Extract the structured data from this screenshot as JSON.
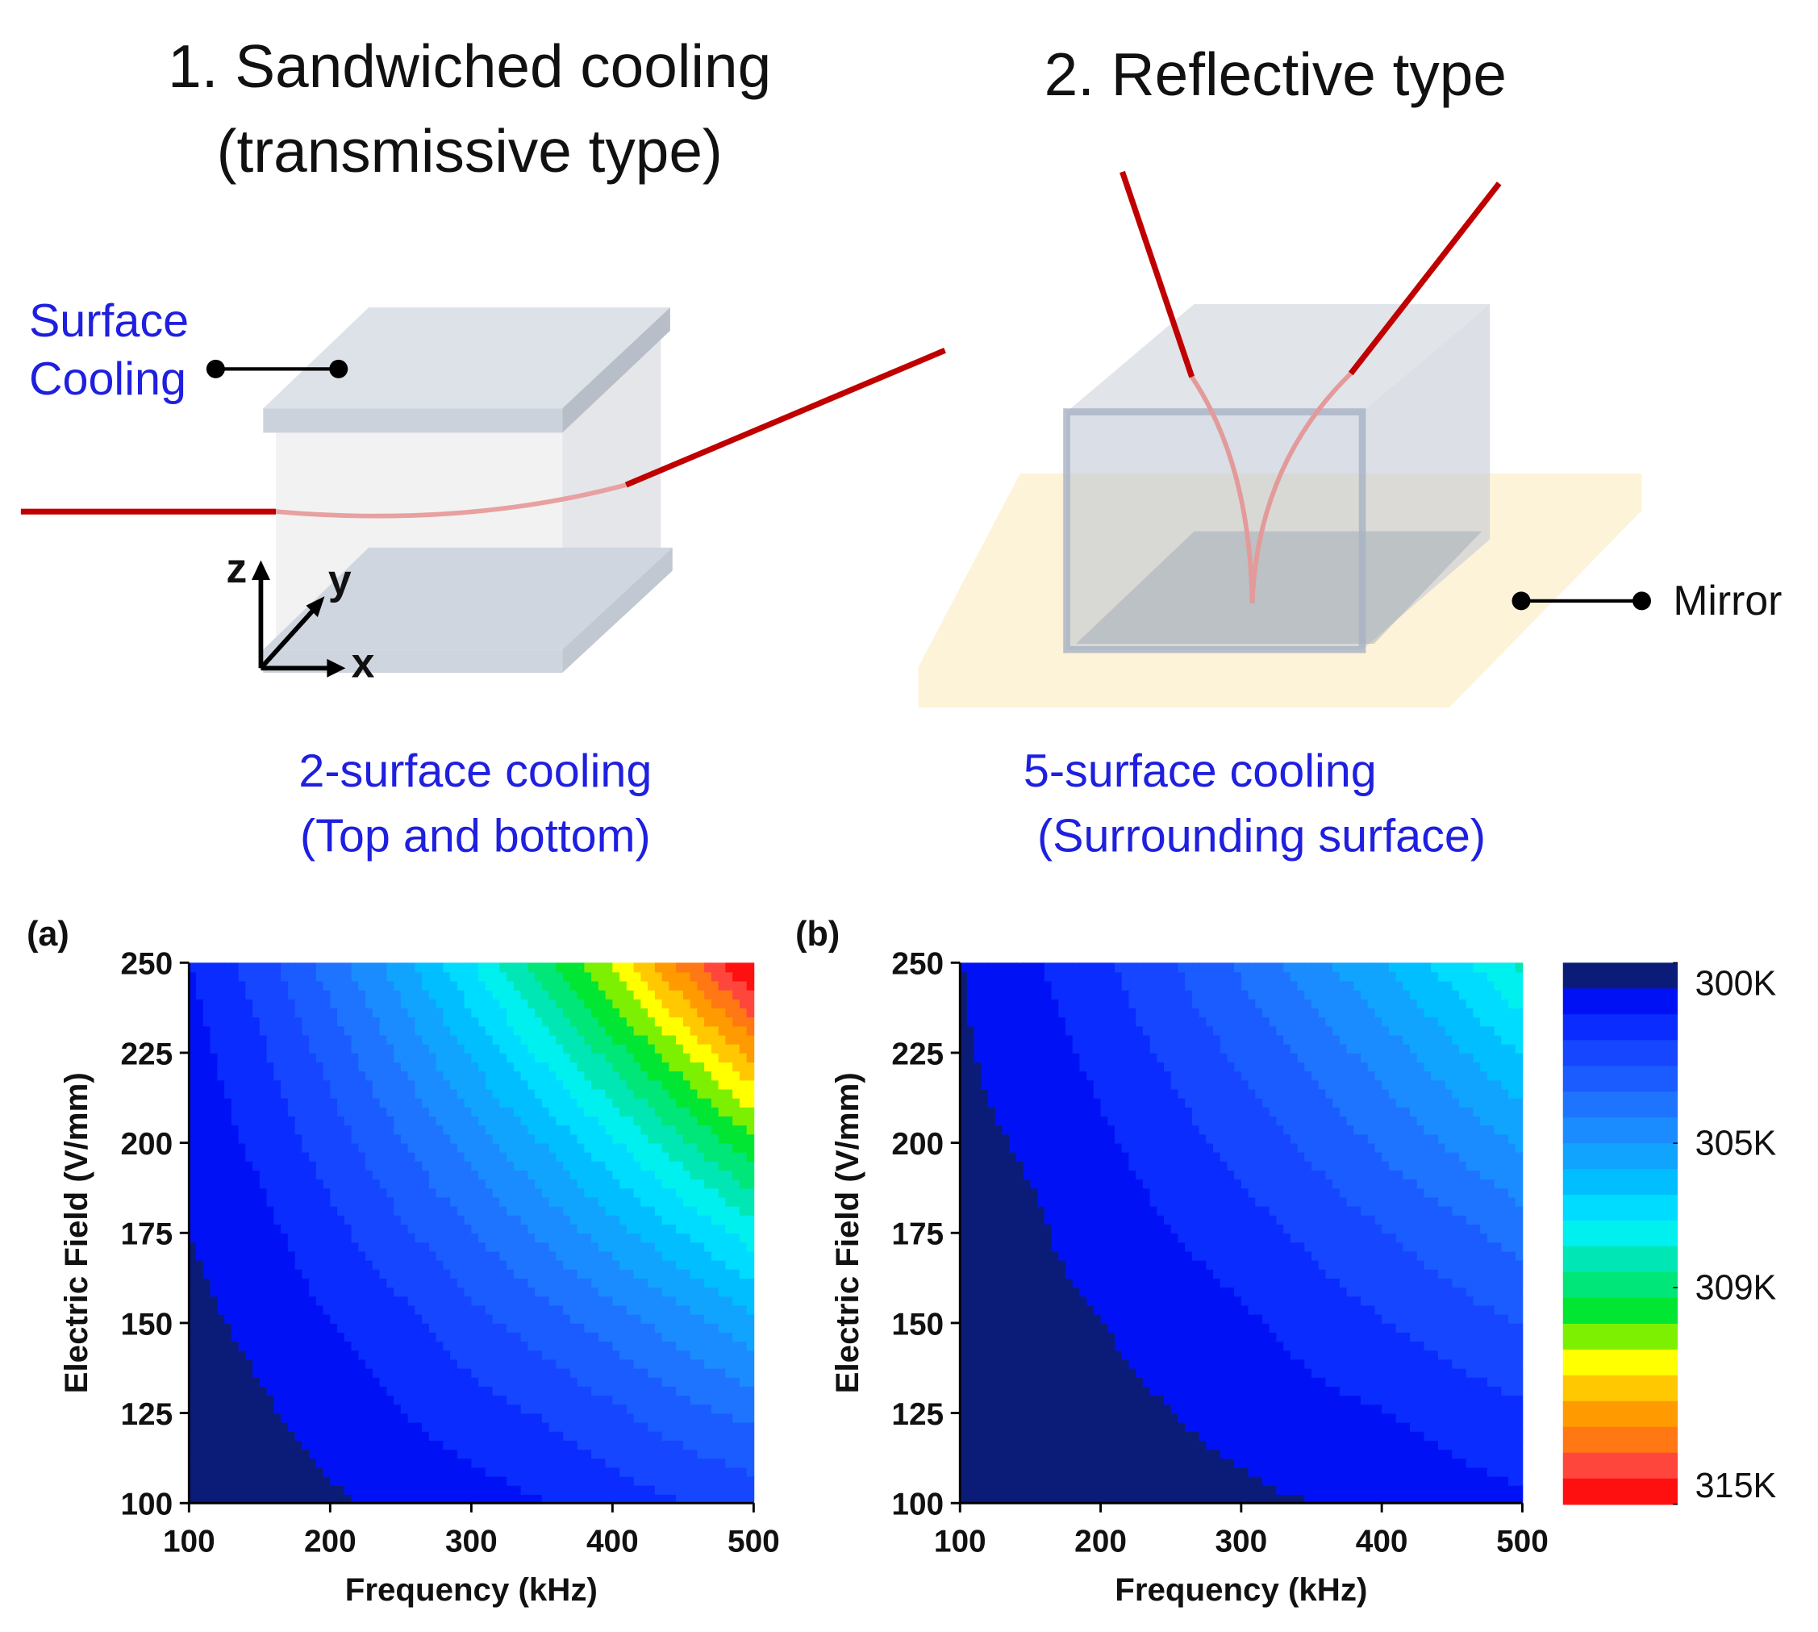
{
  "diagram": {
    "left_title": [
      "1. Sandwiched cooling",
      "(transmissive type)"
    ],
    "right_title": "2. Reflective type",
    "surface_cooling": [
      "Surface",
      "Cooling"
    ],
    "axes": {
      "z": "z",
      "y": "y",
      "x": "x"
    },
    "left_caption": [
      "2-surface cooling",
      "(Top and bottom)"
    ],
    "right_caption": [
      "5-surface cooling",
      "(Surrounding surface)"
    ],
    "mirror": "Mirror"
  },
  "colorbar": {
    "zlim": [
      300,
      315
    ],
    "colors": [
      "#0b1c78",
      "#0012f5",
      "#0a2cff",
      "#1646ff",
      "#1a5cff",
      "#1e74ff",
      "#1a8cff",
      "#10a4ff",
      "#00beff",
      "#00dcff",
      "#00f0f0",
      "#00e6b4",
      "#00e678",
      "#00e632",
      "#7cf000",
      "#ffff00",
      "#ffc800",
      "#ff9a00",
      "#ff7814",
      "#ff463c",
      "#ff1010"
    ],
    "ticks": [
      {
        "value": 300,
        "label": "300K"
      },
      {
        "value": 305,
        "label": "305K"
      },
      {
        "value": 309,
        "label": "309K"
      },
      {
        "value": 315,
        "label": "315K"
      }
    ]
  },
  "chart_data": [
    {
      "type": "contour",
      "label": "(a)",
      "xlabel": "Frequency (kHz)",
      "ylabel": "Electric Field (V/mm)",
      "x": [
        100,
        150,
        200,
        250,
        300,
        350,
        400,
        450,
        500
      ],
      "y": [
        100,
        125,
        150,
        175,
        200,
        225,
        250
      ],
      "z": [
        [
          300.2,
          300.4,
          300.6,
          300.9,
          301.1,
          301.4,
          301.8,
          302.1,
          302.4
        ],
        [
          300.3,
          300.6,
          301.0,
          301.4,
          301.8,
          302.2,
          302.7,
          303.3,
          303.8
        ],
        [
          300.5,
          300.9,
          301.4,
          301.9,
          302.6,
          303.2,
          303.9,
          304.7,
          305.5
        ],
        [
          300.7,
          301.2,
          301.9,
          302.7,
          303.5,
          304.4,
          305.4,
          306.4,
          307.5
        ],
        [
          300.9,
          301.6,
          302.5,
          303.5,
          304.6,
          305.7,
          307.0,
          308.4,
          309.8
        ],
        [
          301.1,
          302.0,
          303.1,
          304.4,
          305.8,
          307.3,
          308.9,
          310.6,
          312.4
        ],
        [
          301.4,
          302.5,
          303.9,
          305.4,
          307.1,
          309.0,
          310.9,
          313.1,
          315.3
        ]
      ],
      "xlim": [
        100,
        500
      ],
      "ylim": [
        100,
        250
      ],
      "xticks": [
        100,
        200,
        300,
        400,
        500
      ],
      "yticks": [
        100,
        125,
        150,
        175,
        200,
        225,
        250
      ]
    },
    {
      "type": "contour",
      "label": "(b)",
      "xlabel": "Frequency (kHz)",
      "ylabel": "Electric Field (V/mm)",
      "x": [
        100,
        150,
        200,
        250,
        300,
        350,
        400,
        450,
        500
      ],
      "y": [
        100,
        125,
        150,
        175,
        200,
        225,
        250
      ],
      "z": [
        [
          300.1,
          300.2,
          300.3,
          300.5,
          300.6,
          300.7,
          300.9,
          301.1,
          301.3
        ],
        [
          300.2,
          300.3,
          300.5,
          300.7,
          300.9,
          301.2,
          301.4,
          301.7,
          302.0
        ],
        [
          300.3,
          300.5,
          300.7,
          301.0,
          301.3,
          301.7,
          302.1,
          302.5,
          302.9
        ],
        [
          300.4,
          300.6,
          301.0,
          301.4,
          301.8,
          302.3,
          302.8,
          303.3,
          303.9
        ],
        [
          300.5,
          300.8,
          301.3,
          301.8,
          302.4,
          303.0,
          303.7,
          304.4,
          305.1
        ],
        [
          300.6,
          301.1,
          301.6,
          302.3,
          303.0,
          303.8,
          304.6,
          305.5,
          306.5
        ],
        [
          300.7,
          301.3,
          302.0,
          302.8,
          303.7,
          304.7,
          305.7,
          306.8,
          308.0
        ]
      ],
      "xlim": [
        100,
        500
      ],
      "ylim": [
        100,
        250
      ],
      "xticks": [
        100,
        200,
        300,
        400,
        500
      ],
      "yticks": [
        100,
        125,
        150,
        175,
        200,
        225,
        250
      ]
    }
  ]
}
